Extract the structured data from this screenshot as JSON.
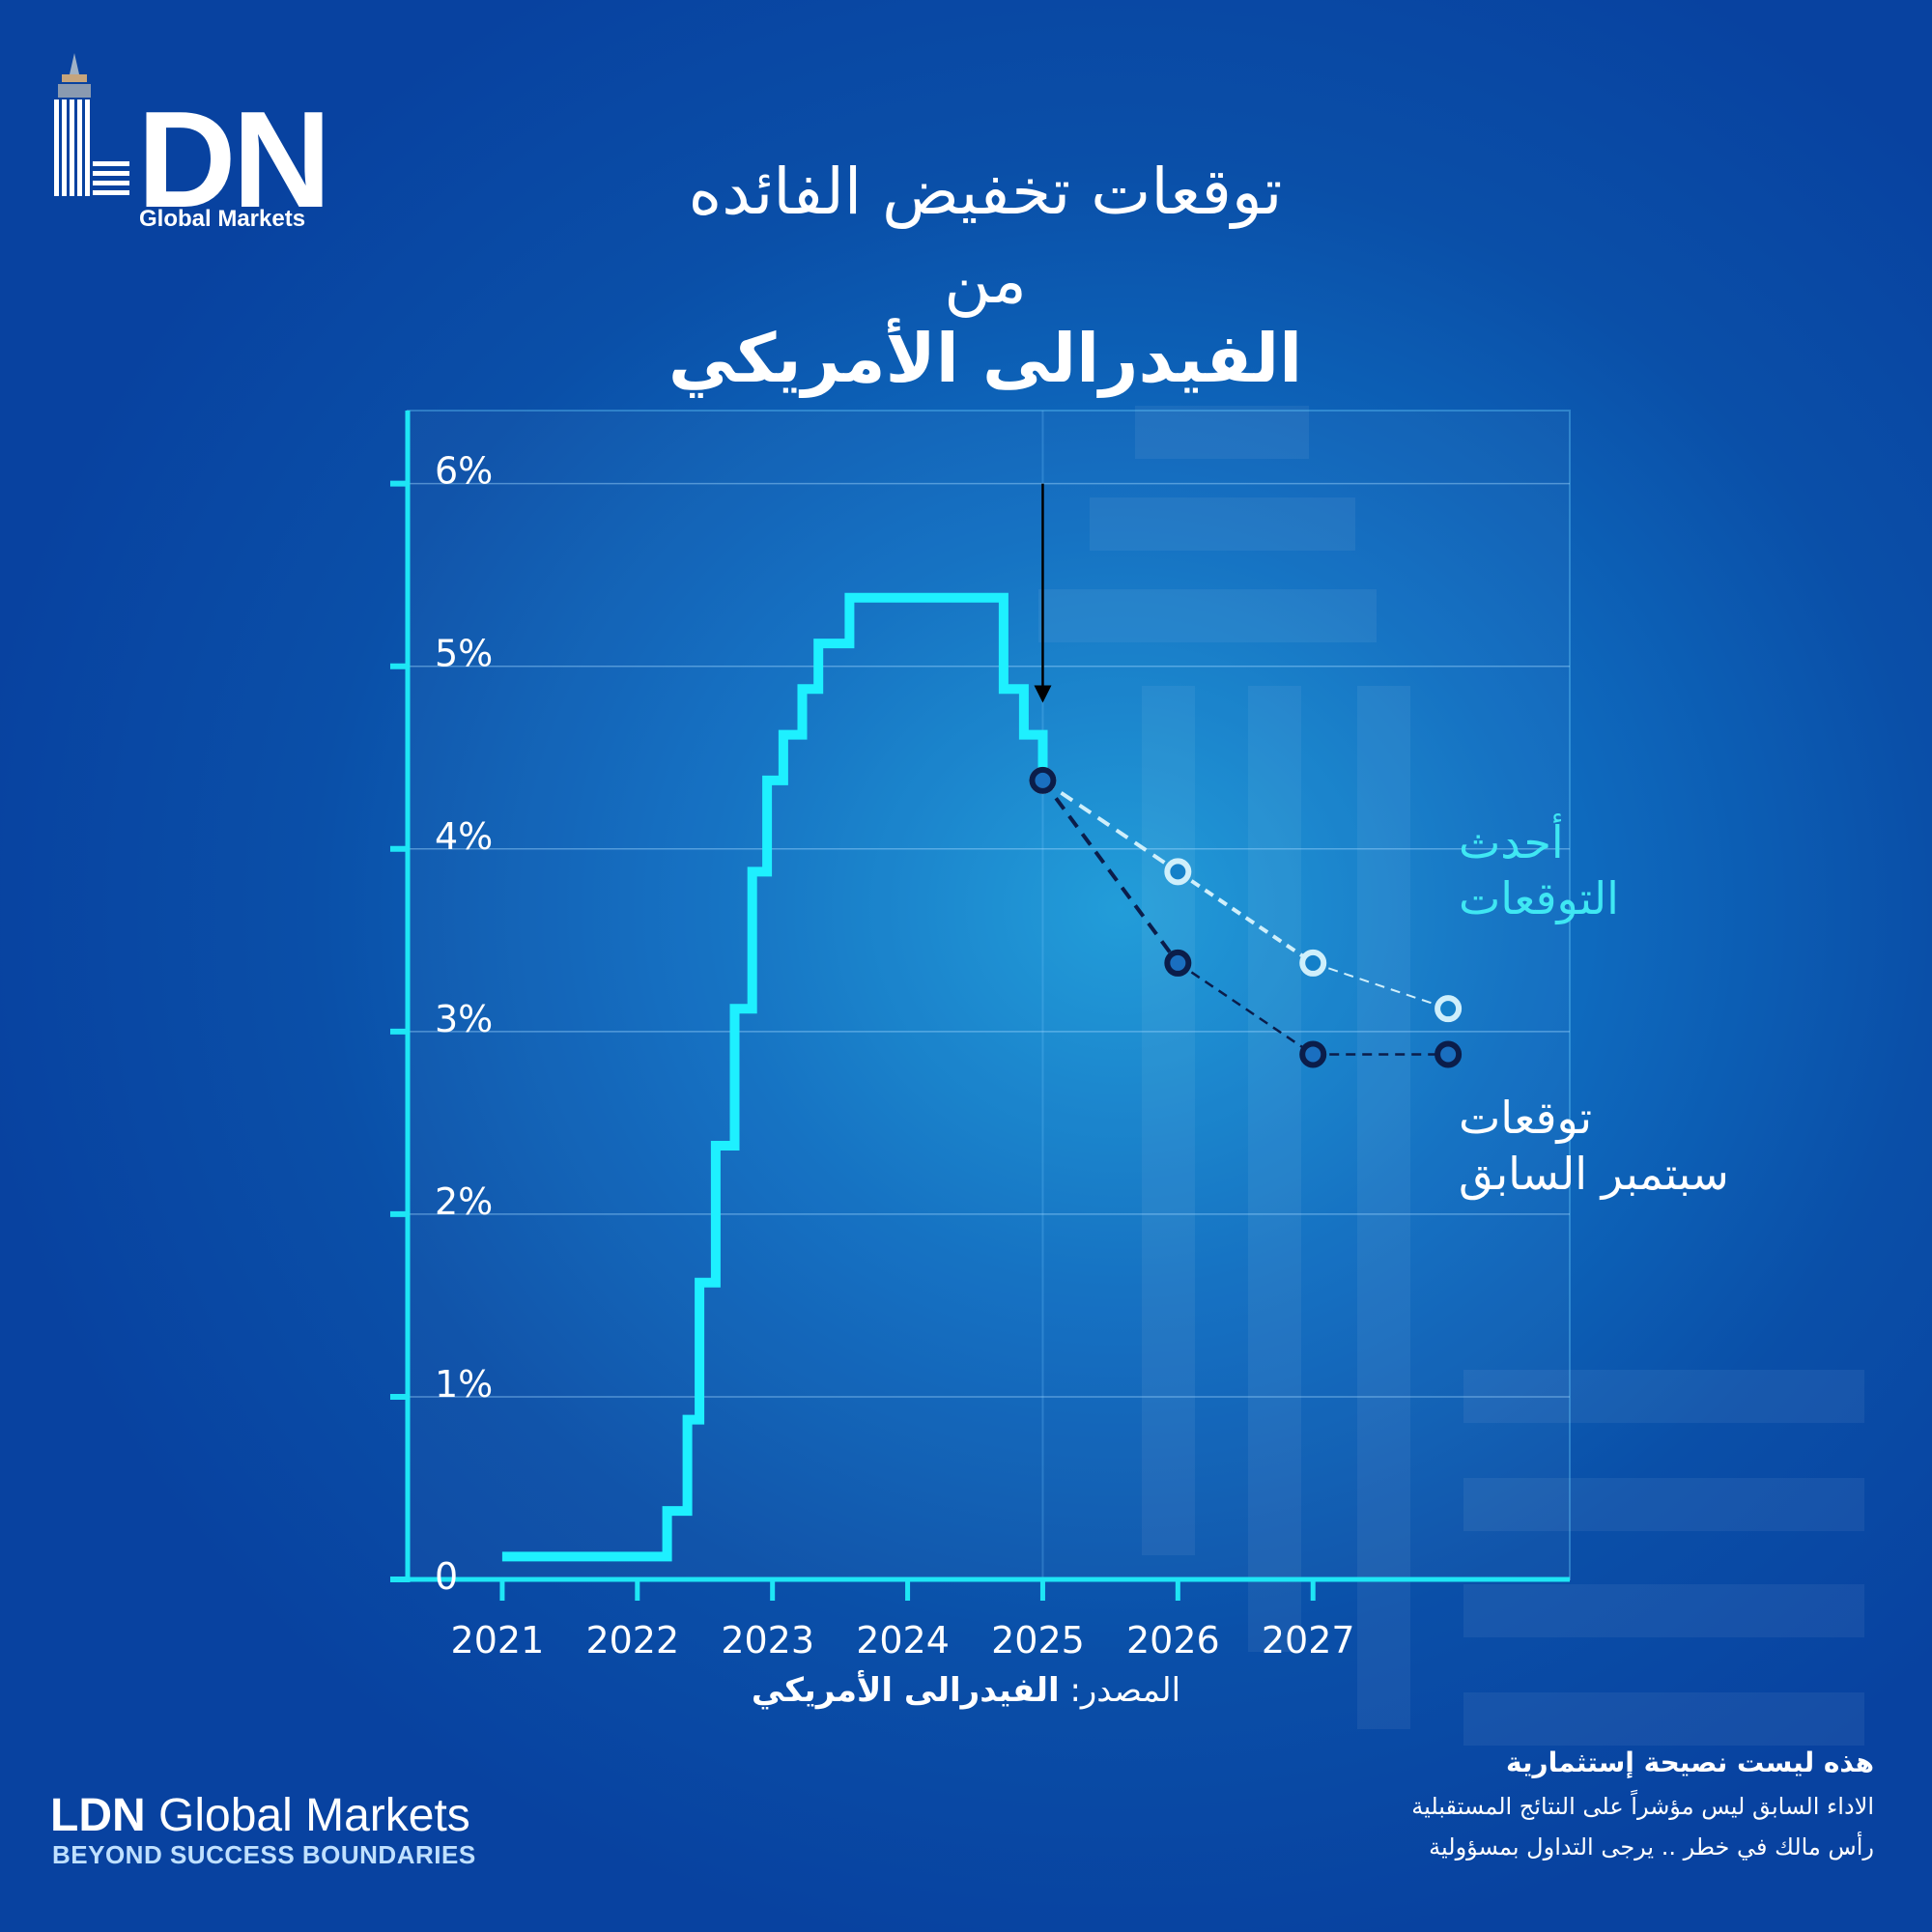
{
  "logo": {
    "mark": "DN",
    "subtitle": "Global Markets"
  },
  "title": {
    "line1": "توقعات تخفيض الفائده",
    "line2": "من",
    "line3": "الفيدرالى الأمريكي"
  },
  "source": {
    "label": "المصدر:",
    "value": "الفيدرالى الأمريكي"
  },
  "brand": {
    "name_bold": "LDN",
    "name_rest": " Global Markets",
    "tagline": "BEYOND SUCCESS BOUNDARIES"
  },
  "disclaimer": {
    "line1": "هذه ليست نصيحة إستثمارية",
    "line2": "الاداء السابق ليس مؤشراً على النتائج المستقبلية",
    "line3": "رأس مالك في خطر .. يرجى التداول بمسؤولية"
  },
  "colors": {
    "history": "#1ef0ff",
    "latest": "#cfeffb",
    "previous": "#0b1d4a",
    "axis": "#1ee6f5",
    "latest_label": "#3fe7f3"
  },
  "chart_data": {
    "type": "line",
    "title": "توقعات تخفيض الفائده من الفيدرالى الأمريكي",
    "xlabel": "",
    "ylabel": "",
    "xlim": [
      2020.3,
      2028.9
    ],
    "ylim": [
      0,
      6.4
    ],
    "x_ticks": [
      2021,
      2022,
      2023,
      2024,
      2025,
      2026,
      2027
    ],
    "y_ticks": [
      {
        "value": 0,
        "label": "0"
      },
      {
        "value": 1,
        "label": "1%"
      },
      {
        "value": 2,
        "label": "2%"
      },
      {
        "value": 3,
        "label": "3%"
      },
      {
        "value": 4,
        "label": "4%"
      },
      {
        "value": 5,
        "label": "5%"
      },
      {
        "value": 6,
        "label": "6%"
      }
    ],
    "grid": true,
    "series": [
      {
        "role": "history",
        "style": "step",
        "points": [
          [
            2021.0,
            0.125
          ],
          [
            2022.22,
            0.125
          ],
          [
            2022.22,
            0.375
          ],
          [
            2022.37,
            0.375
          ],
          [
            2022.37,
            0.875
          ],
          [
            2022.46,
            0.875
          ],
          [
            2022.46,
            1.625
          ],
          [
            2022.58,
            1.625
          ],
          [
            2022.58,
            2.375
          ],
          [
            2022.72,
            2.375
          ],
          [
            2022.72,
            3.125
          ],
          [
            2022.85,
            3.125
          ],
          [
            2022.85,
            3.875
          ],
          [
            2022.96,
            3.875
          ],
          [
            2022.96,
            4.375
          ],
          [
            2023.08,
            4.375
          ],
          [
            2023.08,
            4.625
          ],
          [
            2023.22,
            4.625
          ],
          [
            2023.22,
            4.875
          ],
          [
            2023.34,
            4.875
          ],
          [
            2023.34,
            5.125
          ],
          [
            2023.57,
            5.125
          ],
          [
            2023.57,
            5.375
          ],
          [
            2024.71,
            5.375
          ],
          [
            2024.71,
            4.875
          ],
          [
            2024.86,
            4.875
          ],
          [
            2024.86,
            4.625
          ],
          [
            2025.0,
            4.625
          ],
          [
            2025.0,
            4.375
          ]
        ]
      },
      {
        "name": "أحدث التوقعات",
        "role": "latest",
        "style": "dashed",
        "x": [
          2025,
          2026,
          2027,
          2028
        ],
        "values": [
          4.375,
          3.875,
          3.375,
          3.125
        ]
      },
      {
        "name": "توقعات سبتمبر السابق",
        "role": "previous",
        "style": "dashed",
        "x": [
          2025,
          2026,
          2027,
          2028
        ],
        "values": [
          4.375,
          3.375,
          2.875,
          2.875
        ]
      }
    ],
    "annotations": [
      {
        "type": "arrow",
        "x": 2025,
        "from": 6.0,
        "to": 4.8
      }
    ]
  }
}
